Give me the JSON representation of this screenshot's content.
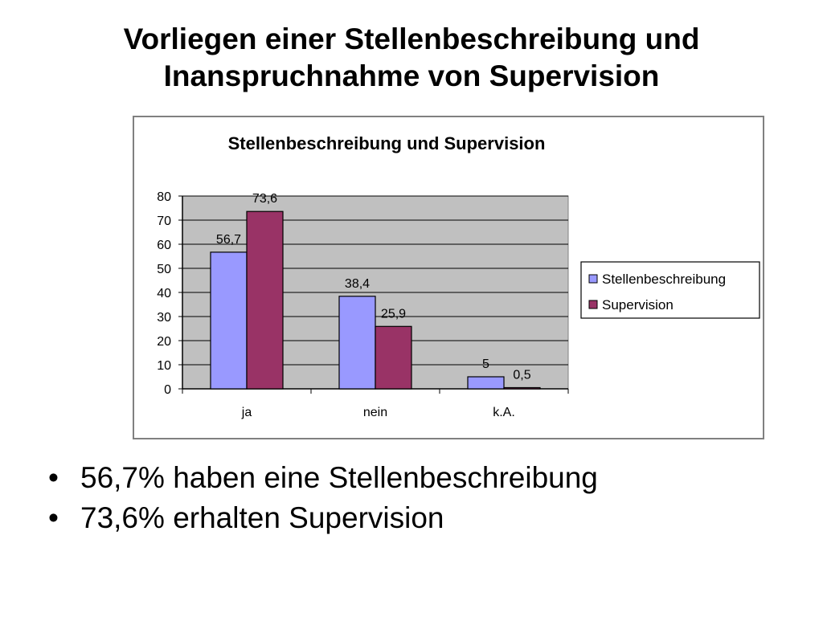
{
  "slide": {
    "title_line1": "Vorliegen einer Stellenbeschreibung und",
    "title_line2": "Inanspruchnahme von Supervision"
  },
  "bullets": [
    "56,7% haben eine Stellenbeschreibung",
    "73,6% erhalten Supervision"
  ],
  "chart_data": {
    "type": "bar",
    "title": "Stellenbeschreibung und Supervision",
    "categories": [
      "ja",
      "nein",
      "k.A."
    ],
    "series": [
      {
        "name": "Stellenbeschreibung",
        "values": [
          56.7,
          38.4,
          5
        ],
        "labels": [
          "56,7",
          "38,4",
          "5"
        ],
        "color": "#9999ff"
      },
      {
        "name": "Supervision",
        "values": [
          73.6,
          25.9,
          0.5
        ],
        "labels": [
          "73,6",
          "25,9",
          "0,5"
        ],
        "color": "#993366"
      }
    ],
    "ylim": [
      0,
      80
    ],
    "yticks": [
      "0",
      "10",
      "20",
      "30",
      "40",
      "50",
      "60",
      "70",
      "80"
    ],
    "plot_background": "#c0c0c0",
    "grid": true,
    "legend_position": "right",
    "xlabel": "",
    "ylabel": ""
  }
}
